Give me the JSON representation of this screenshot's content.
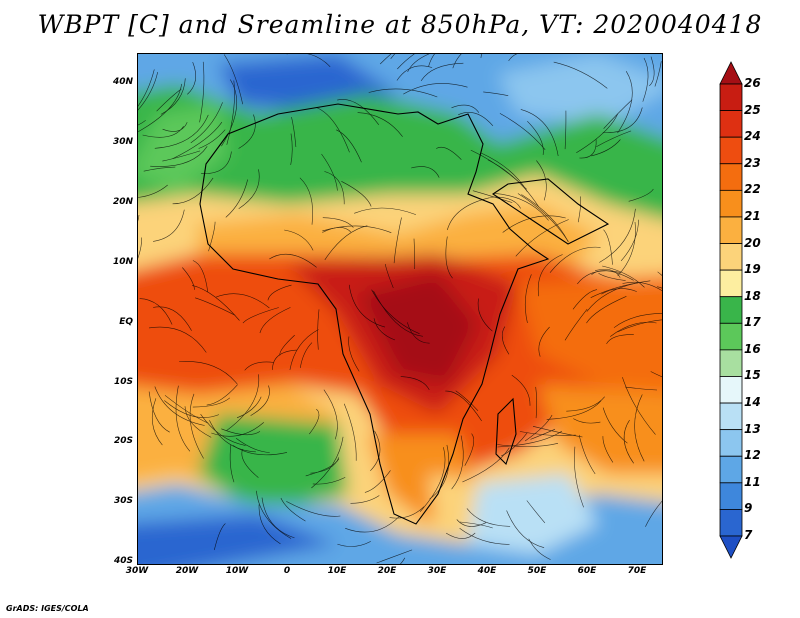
{
  "title": "WBPT [C] and Sreamline at 850hPa, VT: 2020040418",
  "footer": "GrADS: IGES/COLA",
  "map": {
    "region": "Africa",
    "variable": "Wet-bulb potential temperature",
    "level": "850hPa",
    "valid_time": "2020040418",
    "lat_ticks": [
      "40N",
      "30N",
      "20N",
      "10N",
      "EQ",
      "10S",
      "20S",
      "30S",
      "40S"
    ],
    "lon_ticks": [
      "30W",
      "20W",
      "10W",
      "0",
      "10E",
      "20E",
      "30E",
      "40E",
      "50E",
      "60E",
      "70E"
    ],
    "lat_range": [
      -40,
      45
    ],
    "lon_range": [
      -30,
      75
    ]
  },
  "colorbar": {
    "labels": [
      "26",
      "25",
      "24",
      "23",
      "22",
      "21",
      "20",
      "19",
      "18",
      "17",
      "16",
      "15",
      "14",
      "13",
      "12",
      "11",
      "9",
      "7"
    ],
    "colors": [
      "#a50f15",
      "#c81d12",
      "#de3012",
      "#ee4d10",
      "#f46d0f",
      "#f88f1c",
      "#fbb040",
      "#fcd37a",
      "#fdeea0",
      "#39b54a",
      "#5cc85a",
      "#a8dfa0",
      "#e6f7fa",
      "#b9e0f5",
      "#8cc6ef",
      "#5ea7e6",
      "#3e87dc",
      "#2a66d0",
      "#1e4fc4"
    ]
  }
}
